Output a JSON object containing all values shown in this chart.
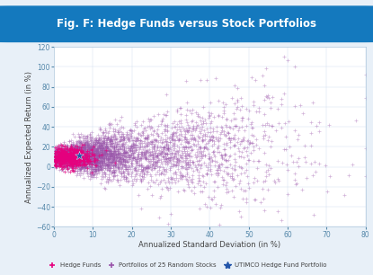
{
  "title": "Fig. F: Hedge Funds versus Stock Portfolios",
  "title_bg_color": "#1479be",
  "title_text_color": "#ffffff",
  "xlabel": "Annualized Standard Deviation (in %)",
  "ylabel": "Annualized Expected Return (in %)",
  "xlim": [
    0,
    80
  ],
  "ylim": [
    -60,
    120
  ],
  "xticks": [
    0,
    10,
    20,
    30,
    40,
    50,
    60,
    70,
    80
  ],
  "yticks": [
    -60,
    -40,
    -20,
    0,
    20,
    40,
    60,
    80,
    100,
    120
  ],
  "bg_color": "#ffffff",
  "outer_bg_color": "#e8f0f8",
  "hedge_fund_color": "#e6007e",
  "portfolio_color": "#9955aa",
  "utimco_color": "#2255aa",
  "utimco_x": 6.5,
  "utimco_y": 11.5,
  "legend_labels": [
    "Hedge Funds",
    "Portfolios of 25 Random Stocks",
    "UTIMCO Hedge Fund Portfolio"
  ],
  "n_hedge": 600,
  "n_portfolio": 4000,
  "seed": 42
}
